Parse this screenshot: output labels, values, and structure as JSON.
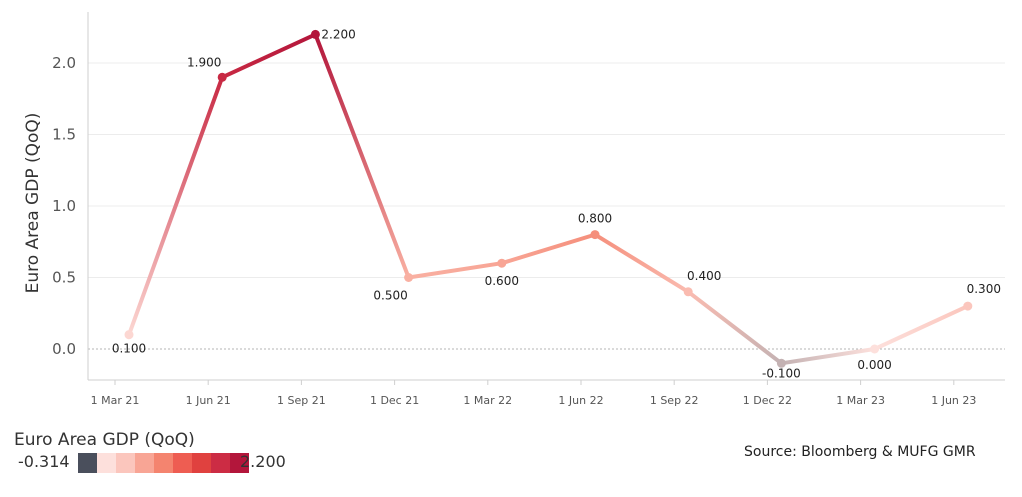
{
  "chart_data": {
    "type": "line",
    "ylabel": "Euro Area GDP (QoQ)",
    "x": [
      "1 Mar 21",
      "1 Jun 21",
      "1 Sep 21",
      "1 Dec 21",
      "1 Mar 22",
      "1 Jun 22",
      "1 Sep 22",
      "1 Dec 22",
      "1 Mar 23",
      "1 Jun 23"
    ],
    "series": [
      {
        "values": [
          0.1,
          1.9,
          2.2,
          0.5,
          0.6,
          0.8,
          0.4,
          -0.1,
          0.0,
          0.3
        ]
      }
    ],
    "data_labels": [
      "0.100",
      "1.900",
      "2.200",
      "0.500",
      "0.600",
      "0.800",
      "0.400",
      "-0.100",
      "0.000",
      "0.300"
    ],
    "yticks": [
      0.0,
      0.5,
      1.0,
      1.5,
      2.0
    ],
    "ytick_labels": [
      "0.0",
      "0.5",
      "1.0",
      "1.5",
      "2.0"
    ],
    "ylim": [
      -0.25,
      2.35
    ],
    "grid": true,
    "zero_line": "dotted",
    "color_legend": {
      "title": "Euro Area GDP (QoQ)",
      "min_label": "-0.314",
      "max_label": "2.200",
      "colors": [
        "#4a4f5c",
        "#fde0dc",
        "#fbc6bd",
        "#f8a595",
        "#f4846f",
        "#ee5d52",
        "#e0413f",
        "#cc2c44",
        "#b3163b"
      ]
    },
    "source": "Source: Bloomberg & MUFG GMR"
  }
}
